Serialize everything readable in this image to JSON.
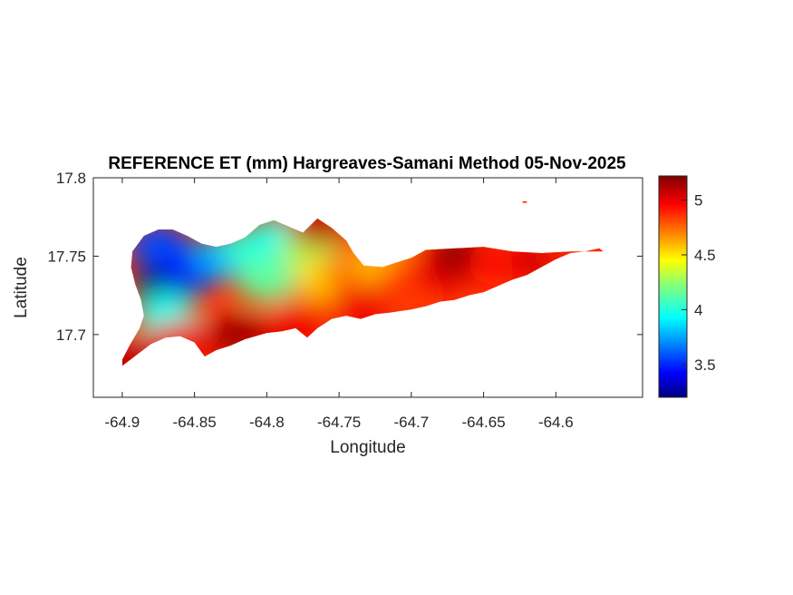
{
  "figure": {
    "title": "REFERENCE ET (mm) Hargreaves-Samani Method  05-Nov-2025"
  },
  "map": {
    "xlabel": "Longitude",
    "ylabel": "Latitude",
    "xlim": [
      -64.92,
      -64.54
    ],
    "ylim": [
      17.66,
      17.8
    ],
    "x_ticks": [
      "-64.9",
      "-64.85",
      "-64.8",
      "-64.75",
      "-64.7",
      "-64.65",
      "-64.6"
    ],
    "x_tick_values": [
      -64.9,
      -64.85,
      -64.8,
      -64.75,
      -64.7,
      -64.65,
      -64.6
    ],
    "y_ticks": [
      "17.8",
      "17.75",
      "17.7"
    ],
    "y_tick_values": [
      17.8,
      17.75,
      17.7
    ],
    "colormap": "jet",
    "island_outline_lonlat": [
      [
        -64.9,
        17.68
      ],
      [
        -64.89,
        17.687
      ],
      [
        -64.88,
        17.694
      ],
      [
        -64.87,
        17.698
      ],
      [
        -64.86,
        17.699
      ],
      [
        -64.85,
        17.695
      ],
      [
        -64.843,
        17.686
      ],
      [
        -64.835,
        17.69
      ],
      [
        -64.825,
        17.693
      ],
      [
        -64.815,
        17.697
      ],
      [
        -64.8,
        17.701
      ],
      [
        -64.79,
        17.702
      ],
      [
        -64.78,
        17.704
      ],
      [
        -64.772,
        17.698
      ],
      [
        -64.765,
        17.704
      ],
      [
        -64.755,
        17.71
      ],
      [
        -64.745,
        17.712
      ],
      [
        -64.735,
        17.71
      ],
      [
        -64.725,
        17.713
      ],
      [
        -64.715,
        17.714
      ],
      [
        -64.7,
        17.716
      ],
      [
        -64.69,
        17.718
      ],
      [
        -64.68,
        17.721
      ],
      [
        -64.67,
        17.722
      ],
      [
        -64.66,
        17.725
      ],
      [
        -64.65,
        17.727
      ],
      [
        -64.64,
        17.731
      ],
      [
        -64.63,
        17.735
      ],
      [
        -64.62,
        17.738
      ],
      [
        -64.61,
        17.743
      ],
      [
        -64.6,
        17.748
      ],
      [
        -64.59,
        17.752
      ],
      [
        -64.58,
        17.753
      ],
      [
        -64.57,
        17.755
      ],
      [
        -64.567,
        17.753
      ],
      [
        -64.575,
        17.753
      ],
      [
        -64.59,
        17.753
      ],
      [
        -64.61,
        17.752
      ],
      [
        -64.63,
        17.753
      ],
      [
        -64.65,
        17.756
      ],
      [
        -64.67,
        17.755
      ],
      [
        -64.69,
        17.754
      ],
      [
        -64.7,
        17.749
      ],
      [
        -64.71,
        17.746
      ],
      [
        -64.72,
        17.743
      ],
      [
        -64.733,
        17.744
      ],
      [
        -64.74,
        17.752
      ],
      [
        -64.745,
        17.76
      ],
      [
        -64.755,
        17.768
      ],
      [
        -64.765,
        17.774
      ],
      [
        -64.775,
        17.765
      ],
      [
        -64.785,
        17.769
      ],
      [
        -64.795,
        17.773
      ],
      [
        -64.805,
        17.77
      ],
      [
        -64.815,
        17.762
      ],
      [
        -64.825,
        17.758
      ],
      [
        -64.835,
        17.756
      ],
      [
        -64.845,
        17.758
      ],
      [
        -64.855,
        17.763
      ],
      [
        -64.865,
        17.767
      ],
      [
        -64.875,
        17.767
      ],
      [
        -64.885,
        17.763
      ],
      [
        -64.893,
        17.753
      ],
      [
        -64.894,
        17.743
      ],
      [
        -64.891,
        17.732
      ],
      [
        -64.887,
        17.722
      ],
      [
        -64.885,
        17.712
      ],
      [
        -64.888,
        17.704
      ],
      [
        -64.895,
        17.693
      ],
      [
        -64.9,
        17.684
      ]
    ],
    "islet_lonlat": [
      [
        -64.623,
        17.785
      ],
      [
        -64.62,
        17.785
      ],
      [
        -64.62,
        17.784
      ],
      [
        -64.623,
        17.784
      ]
    ],
    "et_field_centers": [
      {
        "lon": -64.87,
        "lat": 17.733,
        "et": 3.2
      },
      {
        "lon": -64.875,
        "lat": 17.757,
        "et": 3.6
      },
      {
        "lon": -64.85,
        "lat": 17.742,
        "et": 3.5
      },
      {
        "lon": -64.83,
        "lat": 17.75,
        "et": 3.8
      },
      {
        "lon": -64.87,
        "lat": 17.713,
        "et": 4.0
      },
      {
        "lon": -64.81,
        "lat": 17.755,
        "et": 4.05
      },
      {
        "lon": -64.8,
        "lat": 17.735,
        "et": 4.15
      },
      {
        "lon": -64.79,
        "lat": 17.762,
        "et": 4.0
      },
      {
        "lon": -64.77,
        "lat": 17.755,
        "et": 4.3
      },
      {
        "lon": -64.76,
        "lat": 17.735,
        "et": 4.55
      },
      {
        "lon": -64.74,
        "lat": 17.74,
        "et": 4.75
      },
      {
        "lon": -64.72,
        "lat": 17.745,
        "et": 4.6
      },
      {
        "lon": -64.7,
        "lat": 17.735,
        "et": 4.85
      },
      {
        "lon": -64.68,
        "lat": 17.74,
        "et": 5.0
      },
      {
        "lon": -64.665,
        "lat": 17.75,
        "et": 5.2
      },
      {
        "lon": -64.64,
        "lat": 17.745,
        "et": 4.95
      },
      {
        "lon": -64.61,
        "lat": 17.748,
        "et": 5.05
      },
      {
        "lon": -64.585,
        "lat": 17.753,
        "et": 4.9
      },
      {
        "lon": -64.86,
        "lat": 17.695,
        "et": 5.0
      },
      {
        "lon": -64.82,
        "lat": 17.7,
        "et": 5.15
      },
      {
        "lon": -64.78,
        "lat": 17.708,
        "et": 5.0
      },
      {
        "lon": -64.895,
        "lat": 17.684,
        "et": 5.1
      },
      {
        "lon": -64.735,
        "lat": 17.718,
        "et": 5.0
      },
      {
        "lon": -64.765,
        "lat": 17.77,
        "et": 5.1
      }
    ]
  },
  "colorbar": {
    "clim": [
      3.2,
      5.22
    ],
    "ticks": [
      "3.5",
      "4",
      "4.5",
      "5"
    ],
    "tick_values": [
      3.5,
      4.0,
      4.5,
      5.0
    ]
  }
}
